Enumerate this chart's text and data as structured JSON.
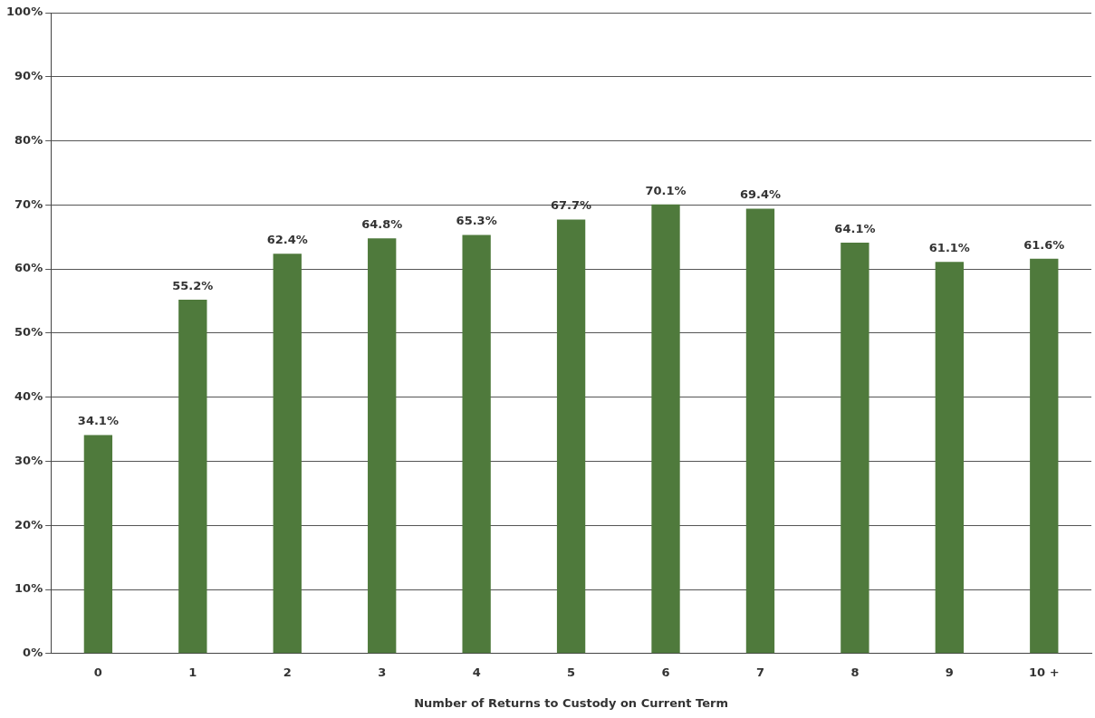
{
  "chart_data": {
    "type": "bar",
    "xlabel": "Number of Returns to Custody on Current Term",
    "categories": [
      "0",
      "1",
      "2",
      "3",
      "4",
      "5",
      "6",
      "7",
      "8",
      "9",
      "10 +"
    ],
    "values": [
      34.1,
      55.2,
      62.4,
      64.8,
      65.3,
      67.7,
      70.1,
      69.4,
      64.1,
      61.1,
      61.6
    ],
    "value_labels": [
      "34.1%",
      "55.2%",
      "62.4%",
      "64.8%",
      "65.3%",
      "67.7%",
      "70.1%",
      "69.4%",
      "64.1%",
      "61.1%",
      "61.6%"
    ],
    "color": "#4f7a3c",
    "ylim": [
      0,
      100
    ],
    "yticks": [
      {
        "value": 0,
        "label": "0%"
      },
      {
        "value": 10,
        "label": "10%"
      },
      {
        "value": 20,
        "label": "20%"
      },
      {
        "value": 30,
        "label": "30%"
      },
      {
        "value": 40,
        "label": "40%"
      },
      {
        "value": 50,
        "label": "50%"
      },
      {
        "value": 60,
        "label": "60%"
      },
      {
        "value": 70,
        "label": "70%"
      },
      {
        "value": 80,
        "label": "80%"
      },
      {
        "value": 90,
        "label": "90%"
      },
      {
        "value": 100,
        "label": "100%"
      }
    ],
    "grid": "y"
  }
}
